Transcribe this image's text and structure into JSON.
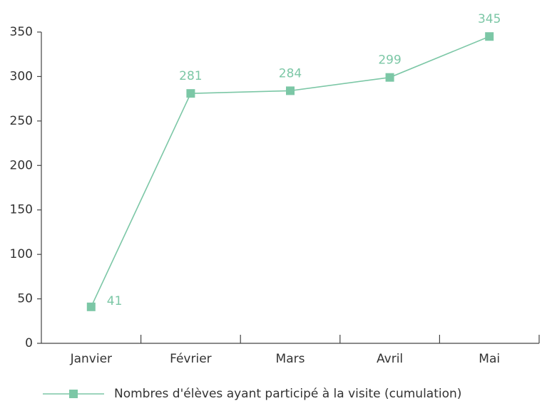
{
  "chart_data": {
    "type": "line",
    "categories": [
      "Janvier",
      "Février",
      "Mars",
      "Avril",
      "Mai"
    ],
    "series": [
      {
        "name": "Nombres d'élèves ayant participé à la visite (cumulation)",
        "color": "#7cc7a6",
        "values": [
          41,
          281,
          284,
          299,
          345
        ]
      }
    ],
    "ylim": [
      0,
      350
    ],
    "yticks": [
      0,
      50,
      100,
      150,
      200,
      250,
      300,
      350
    ],
    "data_labels": true,
    "legend": "bottom"
  }
}
